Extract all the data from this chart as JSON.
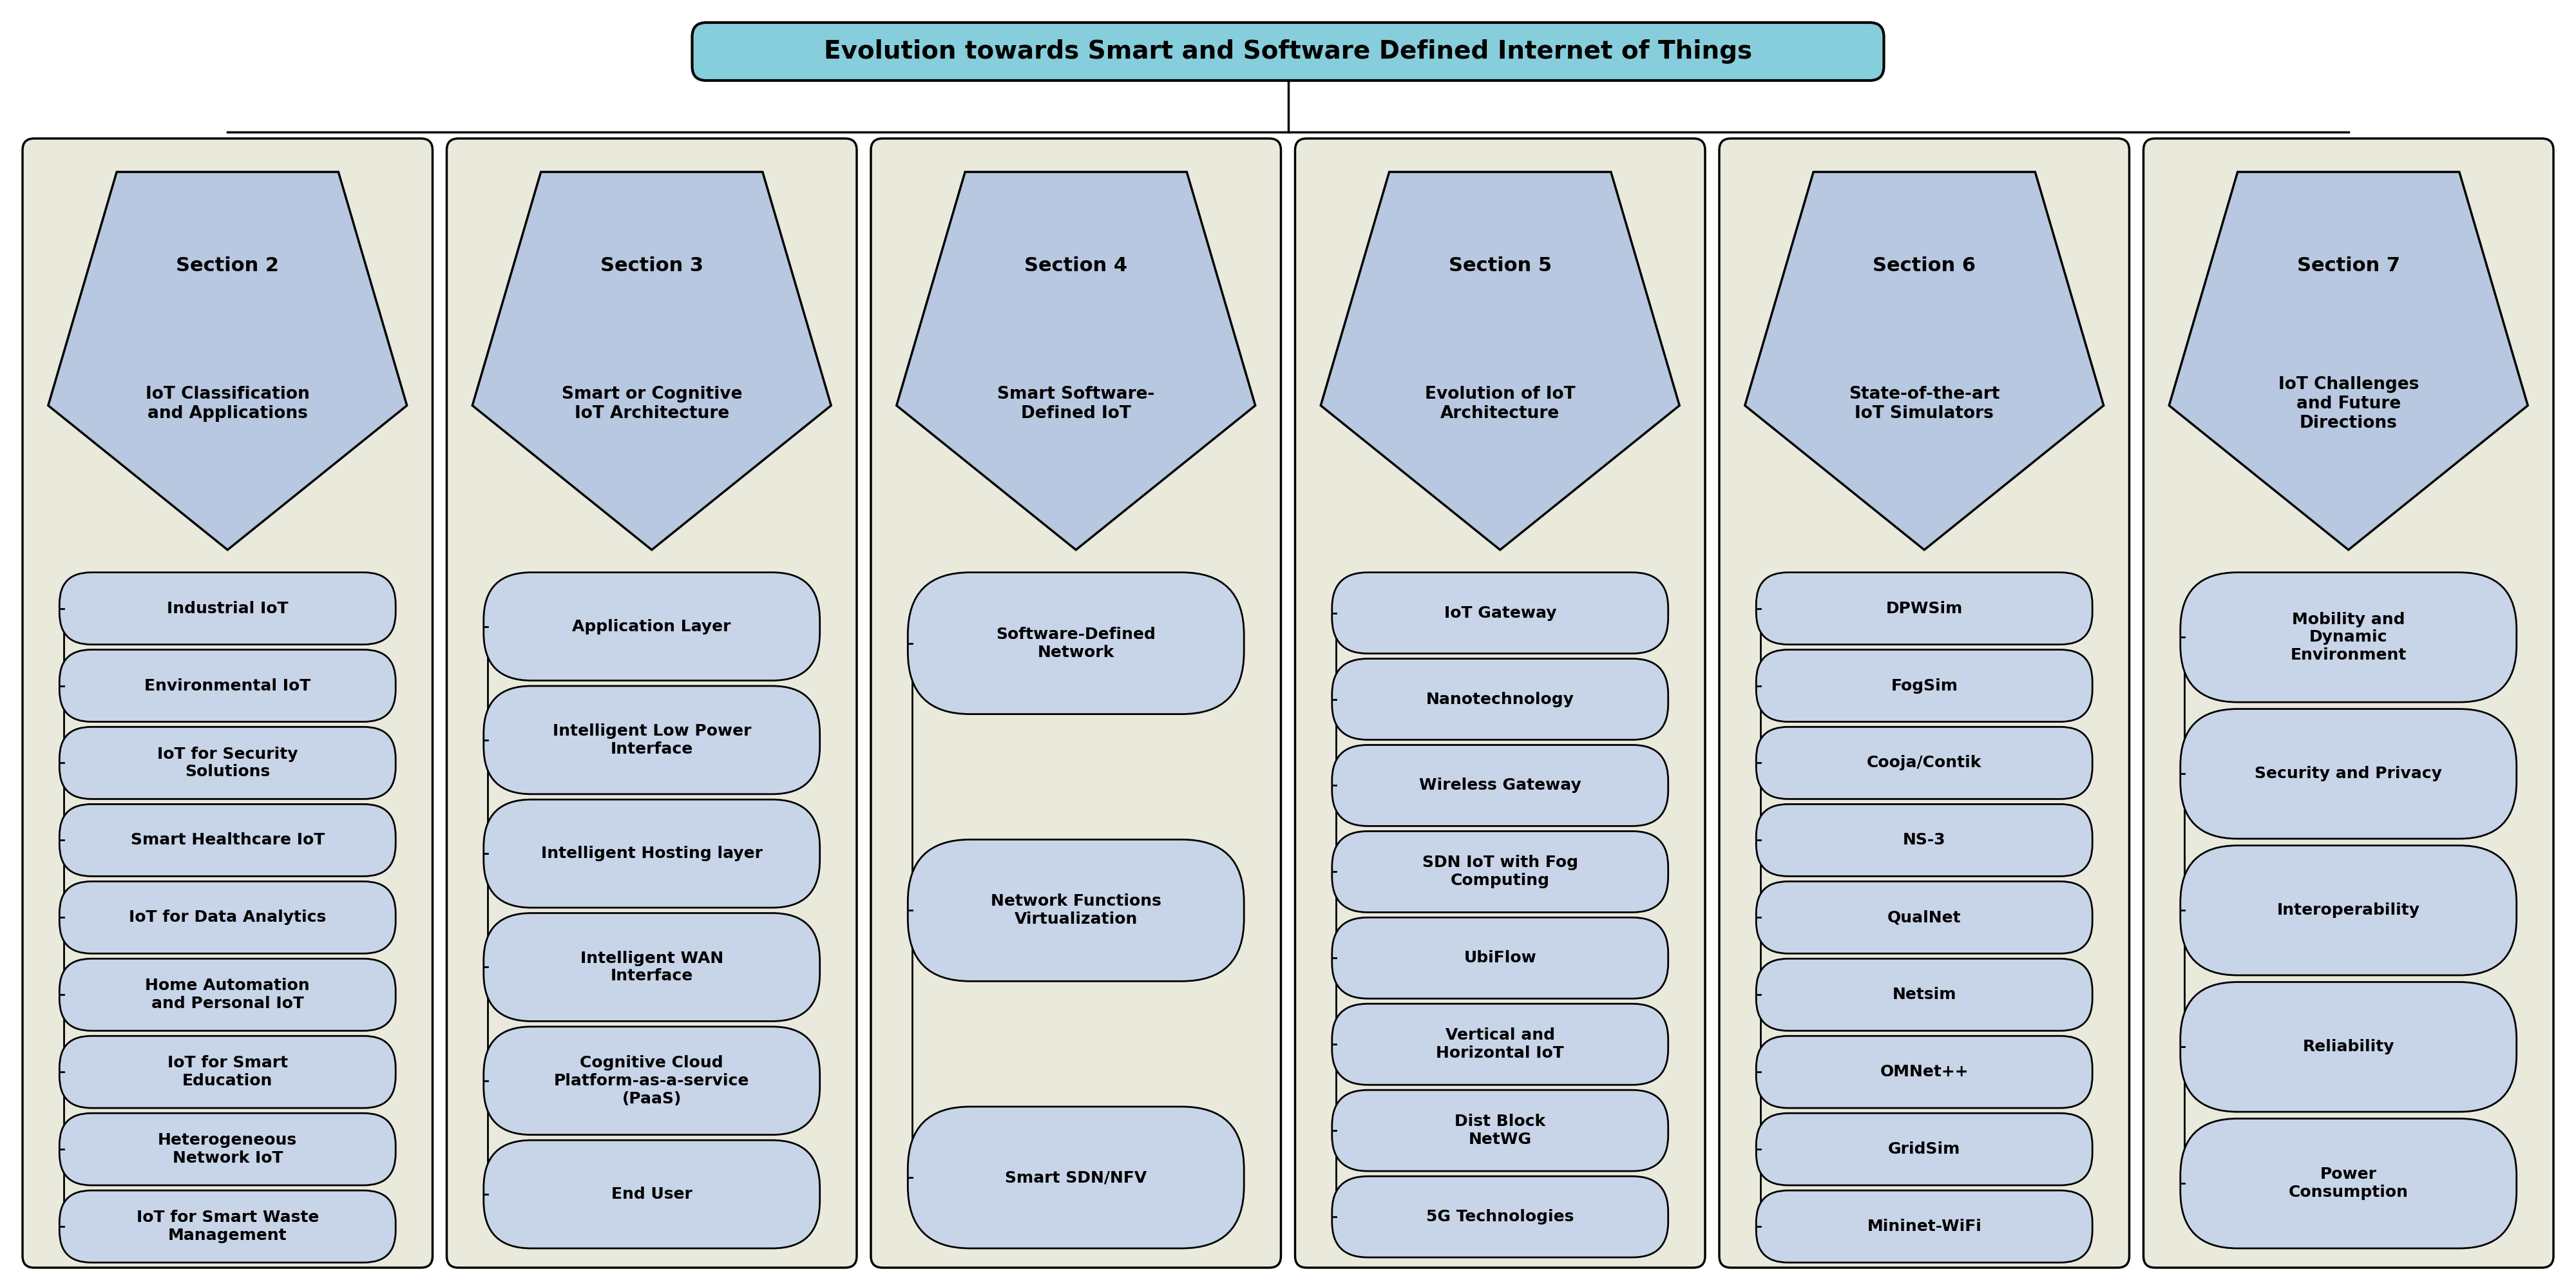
{
  "title": "Evolution towards Smart and Software Defined Internet of Things",
  "title_bg": "#87CEDC",
  "column_bg": "#EAEADC",
  "pentagon_bg": "#B8C8E0",
  "item_bg": "#C8D4E8",
  "columns": [
    {
      "section": "Section 2",
      "subtitle": "IoT Classification\nand Applications",
      "items": [
        "Industrial IoT",
        "Environmental IoT",
        "IoT for Security\nSolutions",
        "Smart Healthcare IoT",
        "IoT for Data Analytics",
        "Home Automation\nand Personal IoT",
        "IoT for Smart\nEducation",
        "Heterogeneous\nNetwork IoT",
        "IoT for Smart Waste\nManagement"
      ]
    },
    {
      "section": "Section 3",
      "subtitle": "Smart or Cognitive\nIoT Architecture",
      "items": [
        "Application Layer",
        "Intelligent Low Power\nInterface",
        "Intelligent Hosting layer",
        "Intelligent WAN\nInterface",
        "Cognitive Cloud\nPlatform-as-a-service\n(PaaS)",
        "End User"
      ]
    },
    {
      "section": "Section 4",
      "subtitle": "Smart Software-\nDefined IoT",
      "items": [
        "Software-Defined\nNetwork",
        "Network Functions\nVirtualization",
        "Smart SDN/NFV"
      ]
    },
    {
      "section": "Section 5",
      "subtitle": "Evolution of IoT\nArchitecture",
      "items": [
        "IoT Gateway",
        "Nanotechnology",
        "Wireless Gateway",
        "SDN IoT with Fog\nComputing",
        "UbiFlow",
        "Vertical and\nHorizontal IoT",
        "Dist Block\nNetWG",
        "5G Technologies"
      ]
    },
    {
      "section": "Section 6",
      "subtitle": "State-of-the-art\nIoT Simulators",
      "items": [
        "DPWSim",
        "FogSim",
        "Cooja/Contik",
        "NS-3",
        "QualNet",
        "Netsim",
        "OMNet++",
        "GridSim",
        "Mininet-WiFi"
      ]
    },
    {
      "section": "Section 7",
      "subtitle": "IoT Challenges\nand Future\nDirections",
      "items": [
        "Mobility and\nDynamic\nEnvironment",
        "Security and Privacy",
        "Interoperability",
        "Reliability",
        "Power\nConsumption"
      ]
    }
  ]
}
